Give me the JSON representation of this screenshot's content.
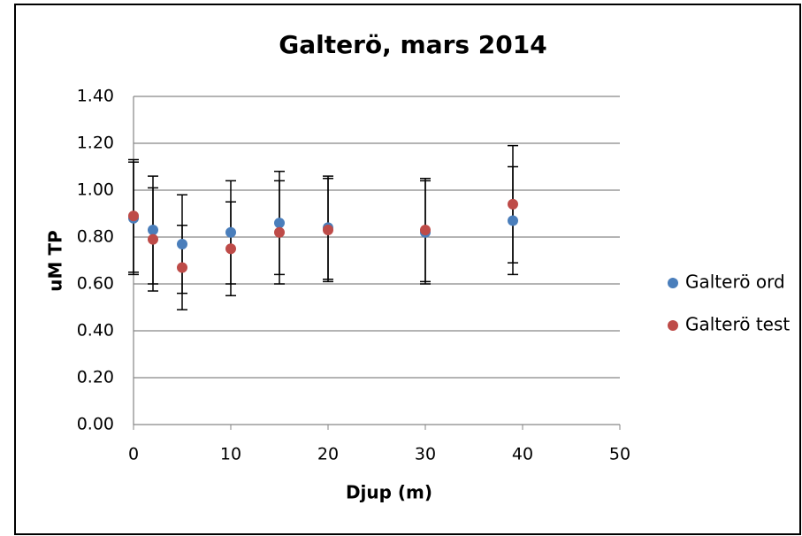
{
  "chart_data": {
    "type": "scatter",
    "title": "Galterö, mars 2014",
    "x_label": "Djup (m)",
    "y_label": "uM TP",
    "xlim": [
      0,
      50
    ],
    "xticks": [
      0,
      10,
      20,
      30,
      40,
      50
    ],
    "ylim": [
      0,
      1.4
    ],
    "yticks": [
      {
        "value": 0,
        "label": "0.00"
      },
      {
        "value": 0.2,
        "label": "0.20"
      },
      {
        "value": 0.4,
        "label": "0.40"
      },
      {
        "value": 0.6,
        "label": "0.60"
      },
      {
        "value": 0.8,
        "label": "0.80"
      },
      {
        "value": 1,
        "label": "1.00"
      },
      {
        "value": 1.2,
        "label": "1.20"
      },
      {
        "value": 1.4,
        "label": "1.40"
      }
    ],
    "grid": true,
    "legend": "right",
    "series": [
      {
        "name": "Galterö ord",
        "color": "#4a7ebb",
        "x": [
          0,
          2,
          5,
          10,
          15,
          20,
          30,
          39
        ],
        "values": [
          0.88,
          0.83,
          0.77,
          0.82,
          0.86,
          0.84,
          0.82,
          0.87
        ],
        "errors": [
          0.24,
          0.23,
          0.21,
          0.22,
          0.22,
          0.22,
          0.22,
          0.23
        ]
      },
      {
        "name": "Galterö test",
        "color": "#be4b48",
        "x": [
          0,
          2,
          5,
          10,
          15,
          20,
          30,
          39
        ],
        "values": [
          0.89,
          0.79,
          0.67,
          0.75,
          0.82,
          0.83,
          0.83,
          0.94
        ],
        "errors": [
          0.24,
          0.22,
          0.18,
          0.2,
          0.22,
          0.22,
          0.22,
          0.25
        ]
      }
    ]
  }
}
